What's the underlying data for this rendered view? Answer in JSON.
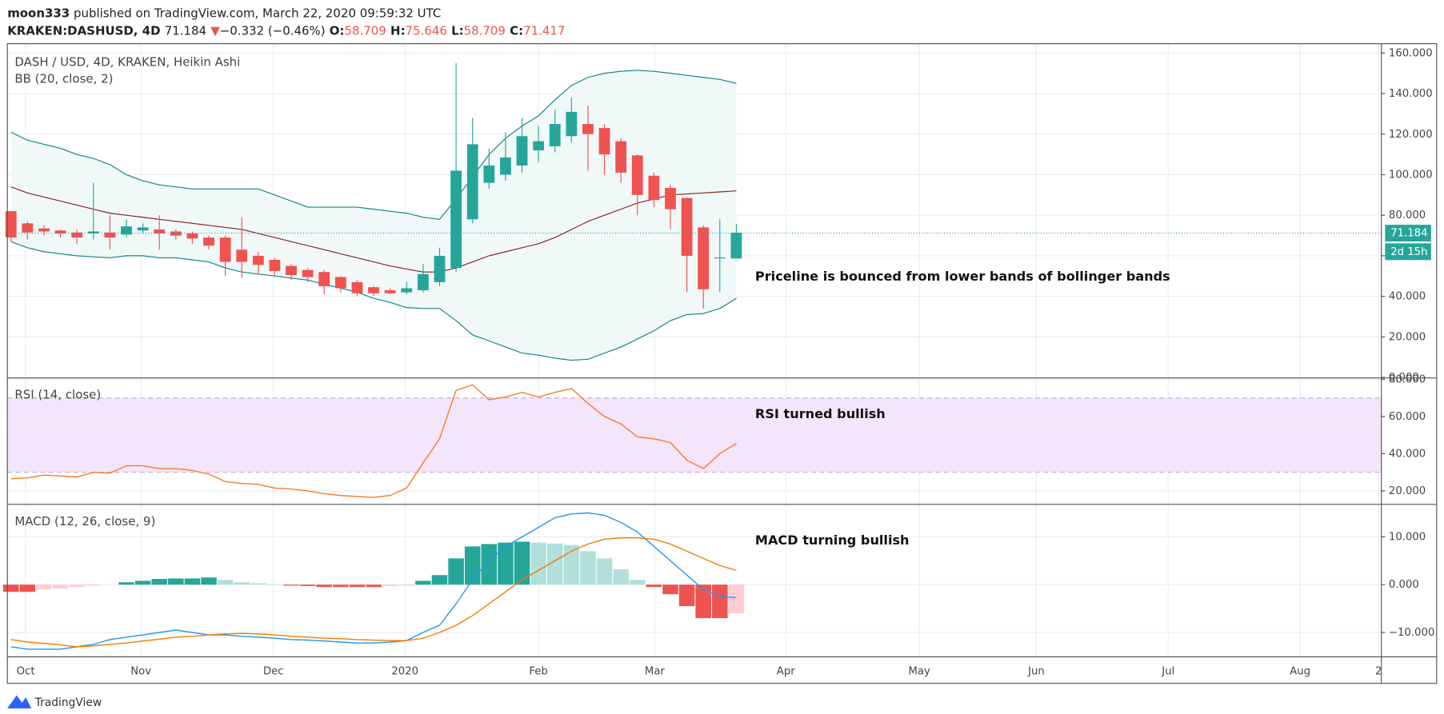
{
  "header": {
    "author": "moon333",
    "published": "published on TradingView.com, March 22, 2020 09:59:32 UTC",
    "symbol": "KRAKEN:DASHUSD, 4D",
    "last": "71.184",
    "arrow": "▼",
    "change": "−0.332 (−0.46%)",
    "open_label": "O:",
    "open": "58.709",
    "high_label": "H:",
    "high": "75.646",
    "low_label": "L:",
    "low": "58.709",
    "close_label": "C:",
    "close": "71.417"
  },
  "footer": {
    "brand": "TradingView"
  },
  "chart_data": [
    {
      "type": "candlestick",
      "title": "DASH / USD, 4D, KRAKEN, Heikin Ashi",
      "subtitle": "BB (20, close, 2)",
      "annotation": "Priceline is bounced from lower bands of bollinger bands",
      "up_color": "#26a69a",
      "down_color": "#ef5350",
      "band_color": "#138484",
      "middle_color": "#872323",
      "band_fill": "#f0f8f8",
      "open": [
        82,
        76,
        73.5,
        72.5,
        71.5,
        71,
        71.5,
        70.5,
        72.5,
        73,
        72,
        71,
        69,
        69,
        63,
        60,
        58,
        55,
        53,
        52,
        49.5,
        47,
        44.5,
        43,
        42,
        43,
        47,
        54,
        78,
        96,
        100,
        104.5,
        112,
        114,
        119,
        125,
        123,
        116.5,
        109.5,
        99.5,
        93.5,
        88.5,
        74,
        58.8,
        58.709
      ],
      "high": [
        82,
        77,
        75,
        73,
        73,
        96,
        80,
        78,
        76,
        80,
        73,
        72,
        70,
        70,
        79,
        62,
        59,
        56,
        54,
        53,
        50,
        48,
        45,
        44,
        47,
        56,
        64,
        155,
        128,
        113,
        121,
        128,
        124,
        132,
        138,
        134,
        125,
        118,
        110,
        101,
        95,
        89,
        75,
        78,
        75.646
      ],
      "low": [
        67,
        68,
        70,
        69,
        66,
        68,
        63,
        69,
        71,
        63,
        68,
        66,
        63,
        50,
        49,
        51,
        50,
        48,
        47,
        41,
        42,
        40,
        40,
        41,
        41,
        42,
        45,
        52,
        76,
        93,
        97,
        101,
        106,
        111,
        116,
        102,
        100,
        96,
        80,
        84,
        73,
        42,
        34,
        42,
        58.709
      ],
      "close": [
        69,
        71.5,
        72,
        71,
        69,
        72,
        69,
        74.5,
        74,
        71,
        70,
        68.5,
        65,
        57,
        57,
        55.5,
        52.5,
        50.5,
        49.5,
        45,
        44,
        41.5,
        41.5,
        41.5,
        44,
        51,
        60,
        102,
        115,
        104.5,
        108.5,
        119,
        116.5,
        125,
        131,
        120,
        110,
        101,
        90,
        87.5,
        83,
        60,
        43.5,
        59.2,
        71.417
      ],
      "upper_band": [
        121,
        117,
        115,
        113,
        110,
        108,
        105,
        100,
        97,
        95,
        94,
        93,
        93,
        93,
        93,
        93,
        90,
        87,
        84,
        84,
        84,
        84,
        83,
        82,
        81,
        79,
        78,
        88,
        99,
        110,
        118,
        124,
        129,
        137,
        144,
        148,
        150,
        151,
        151.5,
        151,
        150,
        149,
        148,
        147,
        145
      ],
      "middle_band": [
        94,
        91,
        89,
        87,
        85,
        83,
        81,
        80,
        79,
        78,
        77,
        76,
        75,
        74,
        73,
        71,
        69,
        67,
        65,
        63,
        61,
        59,
        57,
        55,
        53.5,
        52,
        52,
        54,
        57,
        60,
        62,
        64,
        66,
        69,
        73,
        77,
        80,
        83,
        86,
        88,
        90,
        90.5,
        91,
        91.5,
        92
      ],
      "lower_band": [
        67,
        64,
        62,
        61,
        60,
        59.5,
        59,
        60,
        60,
        59,
        59,
        58,
        57,
        54,
        52,
        51,
        50,
        49,
        48,
        46,
        44,
        42,
        39,
        37,
        34.5,
        34,
        34,
        28,
        21,
        18,
        15,
        12,
        11,
        9.5,
        8.5,
        9,
        12,
        15,
        19,
        23,
        28,
        31,
        31.5,
        34,
        39
      ],
      "last_price": {
        "value": 71.184,
        "label": "71.184"
      },
      "countdown": "2d 15h",
      "ylim": [
        0,
        164.6
      ],
      "yticks": [
        {
          "value": 0,
          "label": "0.000"
        },
        {
          "value": 20,
          "label": "20.000"
        },
        {
          "value": 40,
          "label": "40.000"
        },
        {
          "value": 60,
          "label": "60.000"
        },
        {
          "value": 80,
          "label": "80.000"
        },
        {
          "value": 100,
          "label": "100.000"
        },
        {
          "value": 120,
          "label": "120.000"
        },
        {
          "value": 140,
          "label": "140.000"
        },
        {
          "value": 160,
          "label": "160.000"
        }
      ],
      "xlim": [
        -0.22,
        83.13
      ],
      "xticks": [
        {
          "value": 0.89,
          "label": "Oct"
        },
        {
          "value": 7.88,
          "label": "Nov"
        },
        {
          "value": 15.92,
          "label": "Dec"
        },
        {
          "value": 23.9,
          "label": "2020"
        },
        {
          "value": 32.0,
          "label": "Feb"
        },
        {
          "value": 39.05,
          "label": "Mar"
        },
        {
          "value": 47.0,
          "label": "Apr"
        },
        {
          "value": 55.1,
          "label": "May"
        },
        {
          "value": 62.2,
          "label": "Jun"
        },
        {
          "value": 70.2,
          "label": "Jul"
        },
        {
          "value": 78.2,
          "label": "Aug"
        },
        {
          "value": 82.96,
          "label": "2"
        }
      ],
      "grid": true
    },
    {
      "type": "line",
      "title": "RSI (14, close)",
      "annotation": "RSI turned bullish",
      "color": "#f57c2a",
      "values": [
        26.5,
        27,
        28.5,
        28,
        27.5,
        30,
        29.5,
        33.5,
        33.5,
        32,
        32,
        31,
        29,
        25,
        24,
        23.5,
        21.5,
        21,
        20,
        18.5,
        17.5,
        17,
        16.5,
        17.5,
        21.5,
        35,
        48,
        74,
        77,
        69,
        70.5,
        73,
        70.5,
        73,
        75,
        67,
        60,
        56,
        49,
        48,
        46,
        36.5,
        32,
        40,
        45.5
      ],
      "band": [
        30,
        70
      ],
      "band_fill": "#f3e5fb",
      "band_line": "#c8a8c8",
      "ylim": [
        13,
        80.5
      ],
      "yticks": [
        {
          "value": 20,
          "label": "20.000"
        },
        {
          "value": 40,
          "label": "40.000"
        },
        {
          "value": 60,
          "label": "60.000"
        },
        {
          "value": 80,
          "label": "80.000"
        }
      ],
      "grid": true
    },
    {
      "type": "macd",
      "title": "MACD (12, 26, close, 9)",
      "annotation": "MACD turning bullish",
      "histogram": [
        -1.5,
        -1.5,
        -1,
        -0.8,
        -0.5,
        -0.2,
        0,
        0.5,
        0.8,
        1.2,
        1.3,
        1.3,
        1.5,
        1,
        0.5,
        0.3,
        0.1,
        -0.2,
        -0.3,
        -0.5,
        -0.5,
        -0.5,
        -0.5,
        -0.3,
        -0.2,
        0.8,
        2,
        5.5,
        8,
        8.5,
        8.8,
        9,
        8.8,
        8.6,
        8.3,
        7,
        5.5,
        3.2,
        1,
        -0.5,
        -2,
        -4.5,
        -7,
        -7,
        -6
      ],
      "macd": [
        -13,
        -13.5,
        -13.5,
        -13.5,
        -13,
        -12.5,
        -11.5,
        -11,
        -10.5,
        -10,
        -9.5,
        -10,
        -10.5,
        -10.5,
        -10.8,
        -11,
        -11.2,
        -11.5,
        -11.6,
        -11.8,
        -12,
        -12.2,
        -12.2,
        -12,
        -11.7,
        -10,
        -8.5,
        -4,
        1,
        5,
        8,
        10,
        12,
        14,
        14.8,
        15,
        14.5,
        13,
        11,
        8,
        5,
        2,
        -1,
        -2.5,
        -2.7
      ],
      "signal": [
        -11.5,
        -12,
        -12.3,
        -12.6,
        -13,
        -12.8,
        -12.5,
        -12.2,
        -11.8,
        -11.4,
        -11,
        -10.8,
        -10.5,
        -10.3,
        -10.2,
        -10.3,
        -10.5,
        -10.8,
        -11,
        -11.2,
        -11.3,
        -11.5,
        -11.6,
        -11.7,
        -11.7,
        -11.2,
        -10,
        -8.5,
        -6.5,
        -4,
        -1.5,
        1,
        3,
        5,
        7,
        8.5,
        9.5,
        9.8,
        9.8,
        9.5,
        8.5,
        7,
        5.5,
        4,
        3
      ],
      "macd_color": "#2196f3",
      "signal_color": "#f57c00",
      "histogram_colors": {
        "up_rising": "#26a69a",
        "up_falling": "#b2dfdb",
        "down_falling": "#ef5350",
        "down_rising": "#ffcdd2"
      },
      "ylim": [
        -15,
        16.7
      ],
      "yticks": [
        {
          "value": -10,
          "label": "−10.000"
        },
        {
          "value": 0,
          "label": "0.000"
        },
        {
          "value": 10,
          "label": "10.000"
        }
      ],
      "grid": true
    }
  ]
}
